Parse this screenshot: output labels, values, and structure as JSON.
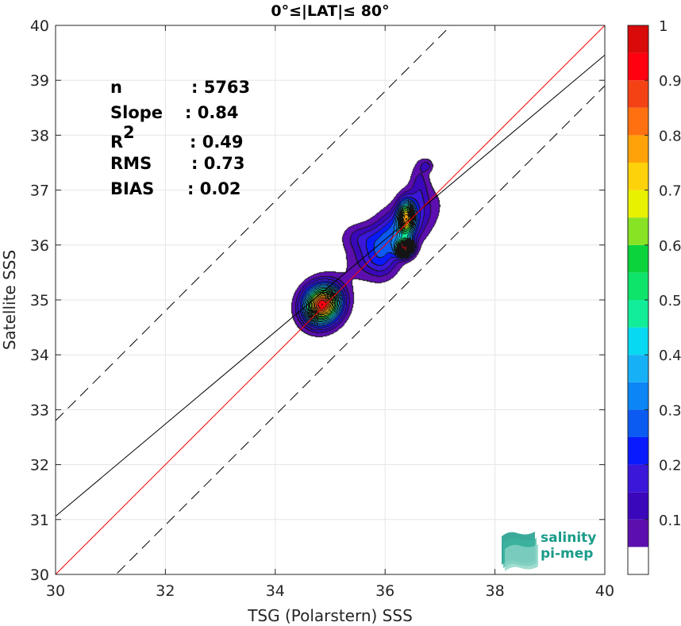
{
  "chart_data": {
    "type": "contour",
    "title": "0°≤|LAT|≤ 80°",
    "xlabel": "TSG (Polarstern) SSS",
    "ylabel": "Satellite SSS",
    "xlim": [
      30,
      40
    ],
    "ylim": [
      30,
      40
    ],
    "x_ticks": [
      "30",
      "32",
      "34",
      "36",
      "38",
      "40"
    ],
    "y_ticks": [
      "30",
      "31",
      "32",
      "33",
      "34",
      "35",
      "36",
      "37",
      "38",
      "39",
      "40"
    ],
    "grid": true,
    "stats": [
      {
        "label": "n",
        "value": ": 5763"
      },
      {
        "label": "Slope",
        "value": ": 0.84"
      },
      {
        "label": "R",
        "sup": "2",
        "value": ": 0.49"
      },
      {
        "label": "RMS",
        "value": ": 0.73"
      },
      {
        "label": "BIAS",
        "value": ": 0.02"
      }
    ],
    "lines": {
      "identity": {
        "slope": 1,
        "intercept": 0,
        "color": "#ff0000"
      },
      "regression": {
        "slope": 0.84,
        "intercept": 5.86,
        "color": "#000000"
      },
      "rms_upper": {
        "slope": 1,
        "intercept": 2.8,
        "style": "dashed"
      },
      "rms_lower": {
        "slope": 1,
        "intercept": -1.1,
        "style": "dashed"
      }
    },
    "clusters": [
      {
        "name": "cluster-1",
        "cx": 34.85,
        "cy": 34.92,
        "sx": 0.23,
        "sy": 0.24,
        "rho": 0.1,
        "peak": 0.95
      },
      {
        "name": "cluster-2",
        "cx": 36.35,
        "cy": 35.95,
        "sx": 0.1,
        "sy": 0.1,
        "rho": 0,
        "peak": 0.8
      },
      {
        "name": "cluster-3",
        "cx": 36.38,
        "cy": 36.5,
        "sx": 0.1,
        "sy": 0.22,
        "rho": 0,
        "peak": 0.58
      },
      {
        "name": "cluster-4",
        "cx": 36.15,
        "cy": 36.2,
        "sx": 0.45,
        "sy": 0.42,
        "rho": 0.65,
        "peak": 0.28
      },
      {
        "name": "cluster-5",
        "cx": 35.95,
        "cy": 35.65,
        "sx": 0.2,
        "sy": 0.22,
        "rho": 0,
        "peak": 0.1
      },
      {
        "name": "cluster-6",
        "cx": 36.62,
        "cy": 37.1,
        "sx": 0.12,
        "sy": 0.3,
        "rho": 0,
        "peak": 0.11
      },
      {
        "name": "cluster-7",
        "cx": 35.5,
        "cy": 36.15,
        "sx": 0.22,
        "sy": 0.17,
        "rho": 0,
        "peak": 0.09
      },
      {
        "name": "cluster-8",
        "cx": 36.75,
        "cy": 37.45,
        "sx": 0.08,
        "sy": 0.08,
        "rho": 0,
        "peak": 0.1
      }
    ],
    "colorbar": {
      "ticks": [
        "0.1",
        "0.2",
        "0.3",
        "0.4",
        "0.5",
        "0.6",
        "0.7",
        "0.8",
        "0.9",
        "1"
      ],
      "levels": [
        0.05,
        0.1,
        0.15,
        0.2,
        0.25,
        0.3,
        0.35,
        0.4,
        0.45,
        0.5,
        0.55,
        0.6,
        0.65,
        0.7,
        0.75,
        0.8,
        0.85,
        0.9,
        0.95,
        1.0
      ],
      "colors": [
        "#ffffff",
        "#5c0fae",
        "#3b07ba",
        "#3b17d9",
        "#0a1aff",
        "#0b5af2",
        "#0b86f4",
        "#16b0f6",
        "#07d9f2",
        "#11ed98",
        "#0ee36a",
        "#0ad33c",
        "#88e324",
        "#e7f100",
        "#fdd20a",
        "#ffa209",
        "#ff7110",
        "#f44215",
        "#ff0010",
        "#d80a0a",
        "#8f0000"
      ]
    }
  },
  "logo": {
    "line1": "salinity",
    "line2": "pi-mep"
  }
}
